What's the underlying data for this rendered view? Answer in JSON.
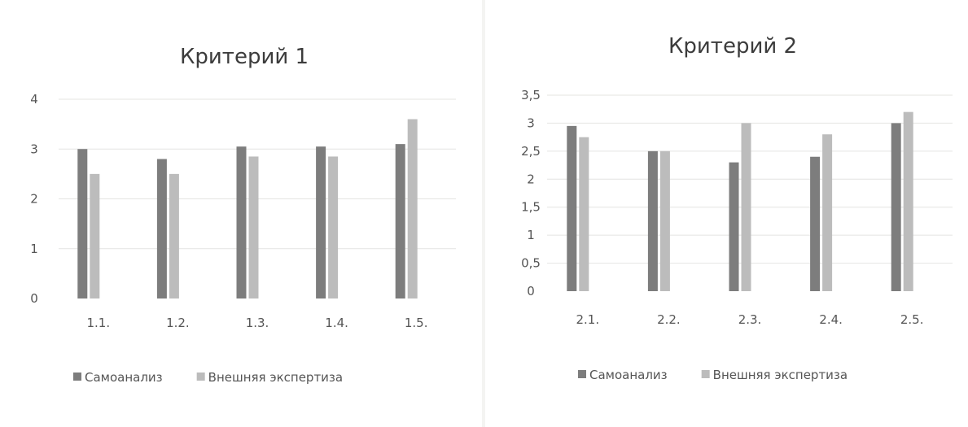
{
  "chart_data": [
    {
      "type": "bar",
      "title": "Критерий 1",
      "categories": [
        "1.1.",
        "1.2.",
        "1.3.",
        "1.4.",
        "1.5."
      ],
      "ylim": [
        0,
        4
      ],
      "yticks": [
        "0",
        "1",
        "2",
        "3",
        "4"
      ],
      "grid": true,
      "legend": "bottom",
      "series": [
        {
          "name": "Самоанализ",
          "values": [
            3.0,
            2.8,
            3.05,
            3.05,
            3.1
          ],
          "color": "#7d7d7d"
        },
        {
          "name": "Внешняя экспертиза",
          "values": [
            2.5,
            2.5,
            2.85,
            2.85,
            3.6
          ],
          "color": "#bcbcbc"
        }
      ]
    },
    {
      "type": "bar",
      "title": "Критерий 2",
      "categories": [
        "2.1.",
        "2.2.",
        "2.3.",
        "2.4.",
        "2.5."
      ],
      "ylim": [
        0,
        3.5
      ],
      "yticks": [
        "0",
        "0,5",
        "1",
        "1,5",
        "2",
        "2,5",
        "3",
        "3,5"
      ],
      "grid": true,
      "legend": "bottom",
      "series": [
        {
          "name": "Самоанализ",
          "values": [
            2.95,
            2.5,
            2.3,
            2.4,
            3.0
          ],
          "color": "#7d7d7d"
        },
        {
          "name": "Внешняя экспертиза",
          "values": [
            2.75,
            2.5,
            3.0,
            2.8,
            3.2
          ],
          "color": "#bcbcbc"
        }
      ]
    }
  ]
}
